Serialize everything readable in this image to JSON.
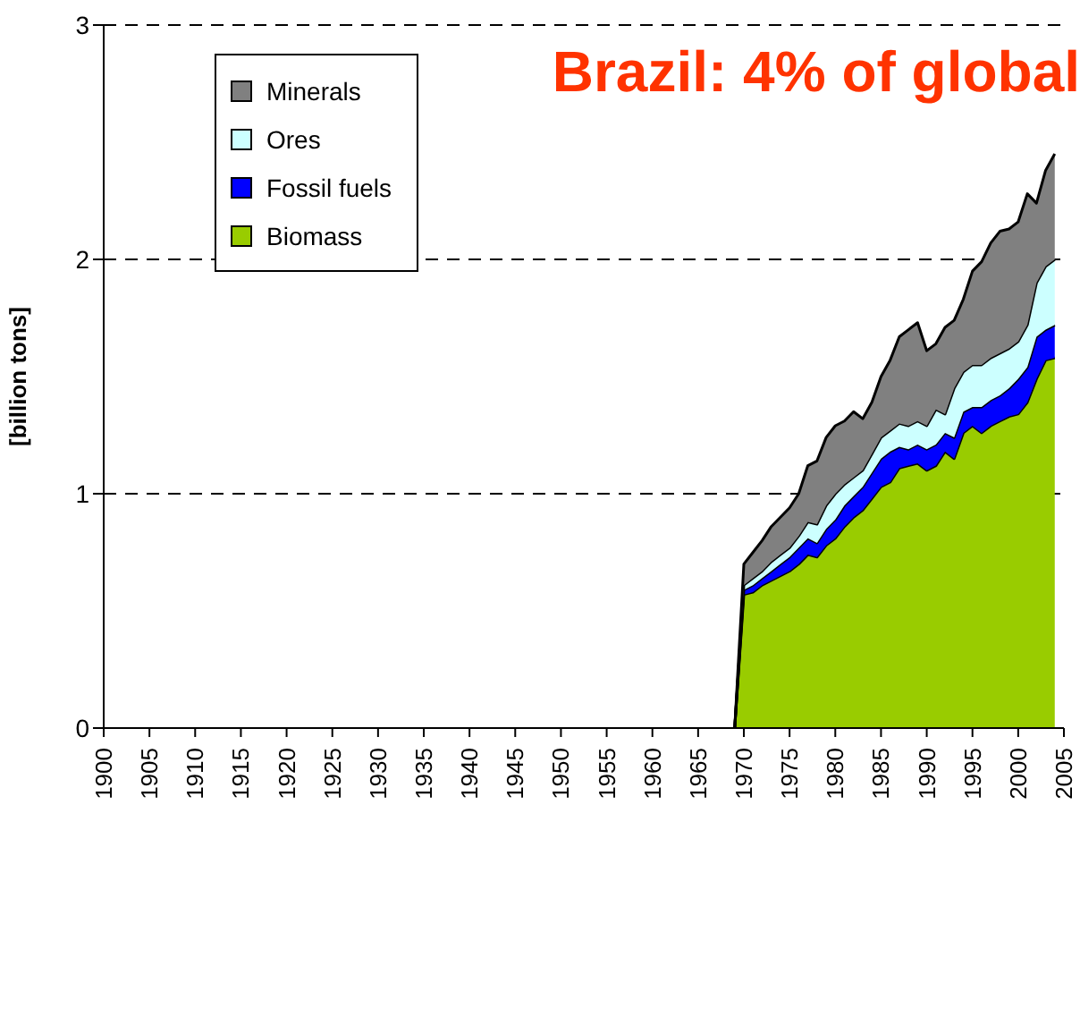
{
  "chart_data": {
    "type": "area",
    "title": "Brazil: 4% of global",
    "ylabel": "[billion tons]",
    "stacked": true,
    "x": [
      1969,
      1970,
      1971,
      1972,
      1973,
      1974,
      1975,
      1976,
      1977,
      1978,
      1979,
      1980,
      1981,
      1982,
      1983,
      1984,
      1985,
      1986,
      1987,
      1988,
      1989,
      1990,
      1991,
      1992,
      1993,
      1994,
      1995,
      1996,
      1997,
      1998,
      1999,
      2000,
      2001,
      2002,
      2003,
      2004
    ],
    "series": [
      {
        "name": "Biomass",
        "color": "#99cc00",
        "values": [
          0,
          0.57,
          0.58,
          0.61,
          0.63,
          0.65,
          0.67,
          0.7,
          0.74,
          0.73,
          0.78,
          0.81,
          0.86,
          0.9,
          0.93,
          0.98,
          1.03,
          1.05,
          1.11,
          1.12,
          1.13,
          1.1,
          1.12,
          1.18,
          1.15,
          1.26,
          1.29,
          1.26,
          1.29,
          1.31,
          1.33,
          1.34,
          1.39,
          1.49,
          1.57,
          1.58
        ]
      },
      {
        "name": "Fossil fuels",
        "color": "#0000ff",
        "values": [
          0,
          0.02,
          0.03,
          0.03,
          0.04,
          0.05,
          0.06,
          0.07,
          0.07,
          0.06,
          0.07,
          0.08,
          0.09,
          0.09,
          0.1,
          0.11,
          0.12,
          0.13,
          0.09,
          0.07,
          0.08,
          0.09,
          0.09,
          0.08,
          0.09,
          0.09,
          0.08,
          0.11,
          0.11,
          0.11,
          0.12,
          0.15,
          0.15,
          0.18,
          0.13,
          0.14
        ]
      },
      {
        "name": "Ores",
        "color": "#ccffff",
        "values": [
          0,
          0.02,
          0.03,
          0.03,
          0.04,
          0.04,
          0.04,
          0.05,
          0.07,
          0.08,
          0.1,
          0.11,
          0.09,
          0.08,
          0.07,
          0.08,
          0.09,
          0.09,
          0.1,
          0.1,
          0.1,
          0.1,
          0.15,
          0.08,
          0.21,
          0.17,
          0.18,
          0.18,
          0.18,
          0.18,
          0.17,
          0.16,
          0.18,
          0.23,
          0.27,
          0.28
        ]
      },
      {
        "name": "Minerals",
        "color": "#808080",
        "values": [
          0,
          0.09,
          0.11,
          0.13,
          0.15,
          0.16,
          0.17,
          0.18,
          0.24,
          0.27,
          0.29,
          0.29,
          0.27,
          0.28,
          0.22,
          0.22,
          0.26,
          0.3,
          0.37,
          0.41,
          0.42,
          0.32,
          0.28,
          0.37,
          0.29,
          0.31,
          0.4,
          0.44,
          0.49,
          0.52,
          0.51,
          0.51,
          0.56,
          0.34,
          0.41,
          0.45
        ]
      }
    ],
    "xlim": [
      1900,
      2005
    ],
    "xticks": [
      1900,
      1905,
      1910,
      1915,
      1920,
      1925,
      1930,
      1935,
      1940,
      1945,
      1950,
      1955,
      1960,
      1965,
      1970,
      1975,
      1980,
      1985,
      1990,
      1995,
      2000,
      2005
    ],
    "ylim": [
      0,
      3
    ],
    "yticks": [
      0,
      1,
      2,
      3
    ],
    "grid": "y",
    "legend": "top left"
  }
}
